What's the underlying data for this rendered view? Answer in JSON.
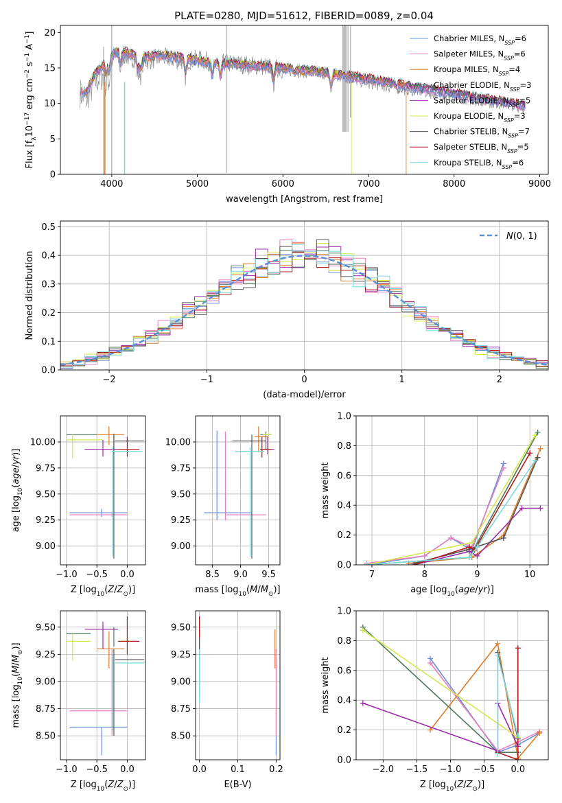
{
  "figure": {
    "title": "PLATE=0280, MJD=51612, FIBERID=0089, z=0.04"
  },
  "models": [
    {
      "name": "Chabrier MILES, N<sub>SSP</sub>=6",
      "label_main": "Chabrier MILES, N",
      "label_sub": "SSP",
      "label_tail": "=6",
      "color": "#6a8fd8"
    },
    {
      "name": "Salpeter MILES",
      "label_main": "Salpeter MILES, N",
      "label_sub": "SSP",
      "label_tail": "=6",
      "color": "#e87fbd"
    },
    {
      "name": "Kroupa MILES",
      "label_main": "Kroupa MILES, N",
      "label_sub": "SSP",
      "label_tail": "=4",
      "color": "#e07b26"
    },
    {
      "name": "Chabrier ELODIE",
      "label_main": "Chabrier ELODIE, N",
      "label_sub": "SSP",
      "label_tail": "=3",
      "color": "#4a7a5a"
    },
    {
      "name": "Salpeter ELODIE",
      "label_main": "Salpeter ELODIE, N",
      "label_sub": "SSP",
      "label_tail": "=5",
      "color": "#9a2aa8"
    },
    {
      "name": "Kroupa ELODIE",
      "label_main": "Kroupa ELODIE, N",
      "label_sub": "SSP",
      "label_tail": "=3",
      "color": "#d4e84a"
    },
    {
      "name": "Chabrier STELIB",
      "label_main": "Chabrier STELIB, N",
      "label_sub": "SSP",
      "label_tail": "=7",
      "color": "#555555"
    },
    {
      "name": "Salpeter STELIB",
      "label_main": "Salpeter STELIB, N",
      "label_sub": "SSP",
      "label_tail": "=5",
      "color": "#b01818"
    },
    {
      "name": "Kroupa STELIB",
      "label_main": "Kroupa STELIB, N",
      "label_sub": "SSP",
      "label_tail": "=6",
      "color": "#7fd8dc"
    }
  ],
  "chart_data": [
    {
      "id": "spectrum",
      "type": "line",
      "xlabel": "wavelength [Angstrom, rest frame]",
      "ylabel": "Flux [fλ10⁻¹⁷ erg cm⁻² s⁻¹ A⁻¹]",
      "xlim": [
        3400,
        9100
      ],
      "ylim": [
        0,
        21
      ],
      "xticks": [
        4000,
        5000,
        6000,
        7000,
        8000,
        9000
      ],
      "yticks": [
        0,
        5,
        10,
        15,
        20
      ],
      "observed_color": "#888888",
      "observed_envelope": [
        [
          3630,
          11.5
        ],
        [
          3700,
          10.5
        ],
        [
          3800,
          13
        ],
        [
          3900,
          14
        ],
        [
          4000,
          16
        ],
        [
          4100,
          17
        ],
        [
          4200,
          16.5
        ],
        [
          4400,
          16
        ],
        [
          4600,
          16.5
        ],
        [
          4800,
          16
        ],
        [
          5000,
          16.2
        ],
        [
          5200,
          15.8
        ],
        [
          5500,
          15.5
        ],
        [
          5800,
          15.2
        ],
        [
          6000,
          14.8
        ],
        [
          6300,
          14.5
        ],
        [
          6600,
          14.2
        ],
        [
          6800,
          13.5
        ],
        [
          7000,
          13
        ],
        [
          7200,
          12.5
        ],
        [
          7500,
          12
        ],
        [
          7800,
          11.5
        ],
        [
          8000,
          11
        ],
        [
          8300,
          10.5
        ],
        [
          8600,
          10
        ],
        [
          8830,
          9.6
        ]
      ],
      "model_envelope": [
        [
          3630,
          12
        ],
        [
          3700,
          11.5
        ],
        [
          3800,
          14
        ],
        [
          3900,
          15.5
        ],
        [
          4000,
          17
        ],
        [
          4100,
          17.5
        ],
        [
          4200,
          17
        ],
        [
          4400,
          16.5
        ],
        [
          4600,
          16.8
        ],
        [
          4800,
          16.5
        ],
        [
          5000,
          16
        ],
        [
          5300,
          15.7
        ],
        [
          5600,
          15.4
        ],
        [
          6000,
          15
        ],
        [
          6400,
          14.5
        ],
        [
          6800,
          13.8
        ],
        [
          7200,
          13
        ],
        [
          7600,
          12.2
        ],
        [
          8000,
          11.4
        ],
        [
          8400,
          10.5
        ],
        [
          8830,
          9.7
        ]
      ],
      "legend_position": "upper right"
    },
    {
      "id": "residuals",
      "type": "line",
      "xlabel": "(data-model)/error",
      "ylabel": "Normed distribution",
      "xlim": [
        -2.5,
        2.5
      ],
      "ylim": [
        0,
        0.52
      ],
      "xticks": [
        -2,
        -1,
        0,
        1,
        2
      ],
      "yticks": [
        0.0,
        0.1,
        0.2,
        0.3,
        0.4,
        0.5
      ],
      "reference_label": "N(0,1)",
      "reference_color": "#5b8fd6",
      "grid": true,
      "legend_position": "upper right"
    },
    {
      "id": "age-vs-Z",
      "type": "scatter",
      "xlabel": "Z [log10(Z/Z⊙)]",
      "ylabel": "age [log10(age/yr)]",
      "xlim": [
        -1.1,
        0.3
      ],
      "ylim": [
        8.82,
        10.25
      ],
      "xticks": [
        -1.0,
        -0.5,
        0.0
      ],
      "yticks": [
        9.0,
        9.25,
        9.5,
        9.75,
        10.0
      ],
      "grid": true
    },
    {
      "id": "age-vs-mass",
      "type": "scatter",
      "xlabel": "mass [log10(M/M⊙)]",
      "ylabel": "",
      "xlim": [
        8.2,
        9.7
      ],
      "ylim": [
        8.82,
        10.25
      ],
      "xticks": [
        8.5,
        9.0,
        9.5
      ],
      "yticks": [
        9.0,
        9.25,
        9.5,
        9.75,
        10.0
      ],
      "grid": true
    },
    {
      "id": "massweight-vs-age",
      "type": "line",
      "xlabel": "age [log10(age/yr)]",
      "ylabel": "mass weight",
      "xlim": [
        6.7,
        10.35
      ],
      "ylim": [
        0,
        1.0
      ],
      "xticks": [
        7,
        8,
        9,
        10
      ],
      "yticks": [
        0.0,
        0.2,
        0.4,
        0.6,
        0.8,
        1.0
      ],
      "grid": true
    },
    {
      "id": "mass-vs-Z",
      "type": "scatter",
      "xlabel": "Z [log10(Z/Z⊙)]",
      "ylabel": "mass [log10(M/M⊙)]",
      "xlim": [
        -1.1,
        0.3
      ],
      "ylim": [
        8.28,
        9.65
      ],
      "xticks": [
        -1.0,
        -0.5,
        0.0
      ],
      "yticks": [
        8.5,
        8.75,
        9.0,
        9.25,
        9.5
      ],
      "grid": true
    },
    {
      "id": "mass-vs-EBV",
      "type": "scatter",
      "xlabel": "E(B-V)",
      "ylabel": "",
      "xlim": [
        -0.01,
        0.21
      ],
      "ylim": [
        8.28,
        9.65
      ],
      "xticks": [
        0.0,
        0.1,
        0.2
      ],
      "yticks": [
        8.5,
        8.75,
        9.0,
        9.25,
        9.5
      ],
      "grid": true
    },
    {
      "id": "massweight-vs-Z",
      "type": "line",
      "xlabel": "Z [log10(Z/Z⊙)]",
      "ylabel": "mass weight",
      "xlim": [
        -2.4,
        0.45
      ],
      "ylim": [
        0,
        1.0
      ],
      "xticks": [
        -2.0,
        -1.5,
        -1.0,
        -0.5,
        0.0
      ],
      "yticks": [
        0.0,
        0.2,
        0.4,
        0.6,
        0.8,
        1.0
      ],
      "grid": true
    }
  ],
  "errorbars_ageZ": [
    {
      "m": 0,
      "x": -0.42,
      "xe": [
        -0.95,
        0.0
      ],
      "y": 9.32,
      "ye": [
        9.28,
        9.36
      ]
    },
    {
      "m": 1,
      "x": -0.25,
      "xe": [
        -0.95,
        0.0
      ],
      "y": 9.3,
      "ye": [
        9.28,
        9.33
      ]
    },
    {
      "m": 2,
      "x": -0.3,
      "xe": [
        -0.5,
        -0.05
      ],
      "y": 10.07,
      "ye": [
        9.97,
        10.15
      ]
    },
    {
      "m": 3,
      "x": -0.22,
      "xe": [
        -1.0,
        -0.5
      ],
      "y": 10.07,
      "ye": [
        9.88,
        10.08
      ]
    },
    {
      "m": 4,
      "x": -0.4,
      "xe": [
        -0.7,
        -0.15
      ],
      "y": 9.93,
      "ye": [
        9.86,
        10.02
      ]
    },
    {
      "m": 5,
      "x": -0.9,
      "xe": [
        -1.0,
        -0.4
      ],
      "y": 10.02,
      "ye": [
        9.84,
        10.07
      ]
    },
    {
      "m": 6,
      "x": -0.22,
      "xe": [
        -0.2,
        0.28
      ],
      "y": 10.01,
      "ye": [
        8.88,
        10.07
      ]
    },
    {
      "m": 7,
      "x": 0.0,
      "xe": [
        -0.15,
        0.2
      ],
      "y": 9.93,
      "ye": [
        9.86,
        10.05
      ]
    },
    {
      "m": 8,
      "x": -0.24,
      "xe": [
        -0.25,
        0.25
      ],
      "y": 9.91,
      "ye": [
        8.9,
        9.95
      ]
    }
  ],
  "errorbars_ageMass": [
    {
      "m": 0,
      "x": 8.58,
      "xe": [
        8.35,
        9.2
      ],
      "y": 9.32,
      "ye": [
        9.25,
        10.11
      ]
    },
    {
      "m": 1,
      "x": 8.73,
      "xe": [
        8.75,
        9.45
      ],
      "y": 9.3,
      "ye": [
        9.25,
        10.1
      ]
    },
    {
      "m": 2,
      "x": 9.32,
      "xe": [
        9.25,
        9.5
      ],
      "y": 10.05,
      "ye": [
        9.9,
        10.15
      ]
    },
    {
      "m": 3,
      "x": 9.45,
      "xe": [
        9.35,
        9.55
      ],
      "y": 10.07,
      "ye": [
        9.92,
        10.1
      ]
    },
    {
      "m": 4,
      "x": 9.48,
      "xe": [
        9.35,
        9.6
      ],
      "y": 9.93,
      "ye": [
        9.88,
        10.05
      ]
    },
    {
      "m": 5,
      "x": 9.5,
      "xe": [
        9.4,
        9.55
      ],
      "y": 10.07,
      "ye": [
        9.87,
        10.1
      ]
    },
    {
      "m": 6,
      "x": 9.2,
      "xe": [
        8.85,
        9.45
      ],
      "y": 10.01,
      "ye": [
        8.88,
        10.07
      ]
    },
    {
      "m": 7,
      "x": 9.38,
      "xe": [
        9.35,
        9.55
      ],
      "y": 9.93,
      "ye": [
        9.85,
        10.05
      ]
    },
    {
      "m": 8,
      "x": 9.17,
      "xe": [
        8.9,
        9.42
      ],
      "y": 9.91,
      "ye": [
        8.9,
        9.95
      ]
    }
  ],
  "lines_mwAge": [
    {
      "m": 0,
      "pts": [
        [
          6.9,
          0.0
        ],
        [
          8.0,
          0.06
        ],
        [
          8.5,
          0.18
        ],
        [
          8.9,
          0.1
        ],
        [
          9.5,
          0.68
        ]
      ]
    },
    {
      "m": 1,
      "pts": [
        [
          6.9,
          0.01
        ],
        [
          8.0,
          0.06
        ],
        [
          8.5,
          0.18
        ],
        [
          8.9,
          0.12
        ],
        [
          9.5,
          0.65
        ]
      ]
    },
    {
      "m": 2,
      "pts": [
        [
          7.7,
          0.01
        ],
        [
          8.9,
          0.05
        ],
        [
          9.5,
          0.2
        ],
        [
          10.2,
          0.78
        ]
      ]
    },
    {
      "m": 3,
      "pts": [
        [
          6.9,
          0.0
        ],
        [
          8.85,
          0.05
        ],
        [
          10.15,
          0.89
        ]
      ]
    },
    {
      "m": 4,
      "pts": [
        [
          7.8,
          0.0
        ],
        [
          8.85,
          0.09
        ],
        [
          9.0,
          0.06
        ],
        [
          9.85,
          0.38
        ],
        [
          10.2,
          0.38
        ]
      ]
    },
    {
      "m": 5,
      "pts": [
        [
          6.9,
          0.0
        ],
        [
          8.9,
          0.15
        ],
        [
          10.1,
          0.87
        ]
      ]
    },
    {
      "m": 6,
      "pts": [
        [
          7.8,
          0.01
        ],
        [
          8.8,
          0.1
        ],
        [
          9.5,
          0.18
        ],
        [
          10.15,
          0.72
        ]
      ]
    },
    {
      "m": 7,
      "pts": [
        [
          7.8,
          0.0
        ],
        [
          8.85,
          0.12
        ],
        [
          8.95,
          0.1
        ],
        [
          10.0,
          0.75
        ]
      ]
    },
    {
      "m": 8,
      "pts": [
        [
          6.9,
          0.0
        ],
        [
          8.85,
          0.05
        ],
        [
          9.0,
          0.12
        ],
        [
          10.1,
          0.7
        ]
      ]
    }
  ],
  "errorbars_massZ": [
    {
      "m": 0,
      "x": -0.42,
      "xe": [
        -0.95,
        0.0
      ],
      "y": 8.58,
      "ye": [
        8.32,
        8.58
      ]
    },
    {
      "m": 1,
      "x": -0.25,
      "xe": [
        -0.95,
        0.0
      ],
      "y": 8.73,
      "ye": [
        8.5,
        9.3
      ]
    },
    {
      "m": 2,
      "x": -0.3,
      "xe": [
        -0.5,
        -0.05
      ],
      "y": 9.3,
      "ye": [
        9.12,
        9.46
      ]
    },
    {
      "m": 3,
      "x": -0.22,
      "xe": [
        -1.0,
        -0.6
      ],
      "y": 9.44,
      "ye": [
        9.32,
        9.5
      ]
    },
    {
      "m": 4,
      "x": -0.4,
      "xe": [
        -0.7,
        -0.15
      ],
      "y": 9.48,
      "ye": [
        9.3,
        9.55
      ]
    },
    {
      "m": 5,
      "x": -0.9,
      "xe": [
        -1.0,
        -0.6
      ],
      "y": 9.37,
      "ye": [
        9.19,
        9.44
      ]
    },
    {
      "m": 6,
      "x": -0.22,
      "xe": [
        -0.2,
        0.28
      ],
      "y": 9.2,
      "ye": [
        8.5,
        9.3
      ]
    },
    {
      "m": 7,
      "x": 0.0,
      "xe": [
        -0.15,
        0.2
      ],
      "y": 9.37,
      "ye": [
        9.25,
        9.6
      ]
    },
    {
      "m": 8,
      "x": -0.24,
      "xe": [
        -0.2,
        0.28
      ],
      "y": 9.17,
      "ye": [
        8.55,
        9.25
      ]
    }
  ],
  "errorbars_massEBV": [
    {
      "m": 0,
      "x": 0.2,
      "y": 8.58,
      "ye": [
        8.32,
        8.75
      ]
    },
    {
      "m": 1,
      "x": 0.2,
      "y": 8.73,
      "ye": [
        8.5,
        9.3
      ]
    },
    {
      "m": 2,
      "x": 0.197,
      "y": 9.3,
      "ye": [
        9.12,
        9.48
      ]
    },
    {
      "m": 3,
      "x": 0.0,
      "y": 9.44,
      "ye": [
        9.32,
        9.5
      ]
    },
    {
      "m": 4,
      "x": 0.0,
      "y": 9.48,
      "ye": [
        9.3,
        9.55
      ]
    },
    {
      "m": 5,
      "x": 0.0,
      "y": 9.37,
      "ye": [
        9.19,
        9.44
      ]
    },
    {
      "m": 6,
      "x": 0.0,
      "y": 9.2,
      "ye": [
        8.85,
        9.4
      ]
    },
    {
      "m": 7,
      "x": 0.0,
      "y": 9.5,
      "ye": [
        9.4,
        9.6
      ]
    },
    {
      "m": 8,
      "x": 0.0,
      "y": 9.17,
      "ye": [
        8.8,
        9.3
      ]
    }
  ],
  "lines_mwZ": [
    {
      "m": 0,
      "pts": [
        [
          -1.3,
          0.68
        ],
        [
          -0.3,
          0.05
        ],
        [
          0.0,
          0.1
        ],
        [
          0.32,
          0.18
        ]
      ]
    },
    {
      "m": 1,
      "pts": [
        [
          -1.3,
          0.65
        ],
        [
          -0.3,
          0.06
        ],
        [
          0.0,
          0.12
        ],
        [
          0.32,
          0.19
        ]
      ]
    },
    {
      "m": 2,
      "pts": [
        [
          -1.3,
          0.2
        ],
        [
          -0.3,
          0.78
        ],
        [
          0.0,
          0.01
        ],
        [
          0.32,
          0.18
        ]
      ]
    },
    {
      "m": 3,
      "pts": [
        [
          -2.3,
          0.89
        ],
        [
          -0.3,
          0.05
        ],
        [
          0.0,
          0.05
        ]
      ]
    },
    {
      "m": 4,
      "pts": [
        [
          -2.3,
          0.38
        ],
        [
          -0.3,
          0.06
        ],
        [
          -0.3,
          0.38
        ],
        [
          0.0,
          0.09
        ]
      ]
    },
    {
      "m": 5,
      "pts": [
        [
          -2.3,
          0.87
        ],
        [
          0.0,
          0.15
        ]
      ]
    },
    {
      "m": 6,
      "pts": [
        [
          -0.3,
          0.04
        ],
        [
          -0.3,
          0.72
        ],
        [
          0.0,
          0.14
        ]
      ]
    },
    {
      "m": 7,
      "pts": [
        [
          -0.3,
          0.05
        ],
        [
          0.0,
          0.0
        ],
        [
          0.0,
          0.75
        ]
      ]
    },
    {
      "m": 8,
      "pts": [
        [
          -0.3,
          0.04
        ],
        [
          -0.3,
          0.7
        ],
        [
          0.0,
          0.16
        ]
      ]
    }
  ],
  "hist_edges": [
    -2.5,
    -2.375,
    -2.25,
    -2.125,
    -2.0,
    -1.875,
    -1.75,
    -1.625,
    -1.5,
    -1.375,
    -1.25,
    -1.125,
    -1.0,
    -0.875,
    -0.75,
    -0.625,
    -0.5,
    -0.375,
    -0.25,
    -0.125,
    0.0,
    0.125,
    0.25,
    0.375,
    0.5,
    0.625,
    0.75,
    0.875,
    1.0,
    1.125,
    1.25,
    1.375,
    1.5,
    1.625,
    1.75,
    1.875,
    2.0,
    2.125,
    2.25,
    2.375,
    2.5
  ]
}
